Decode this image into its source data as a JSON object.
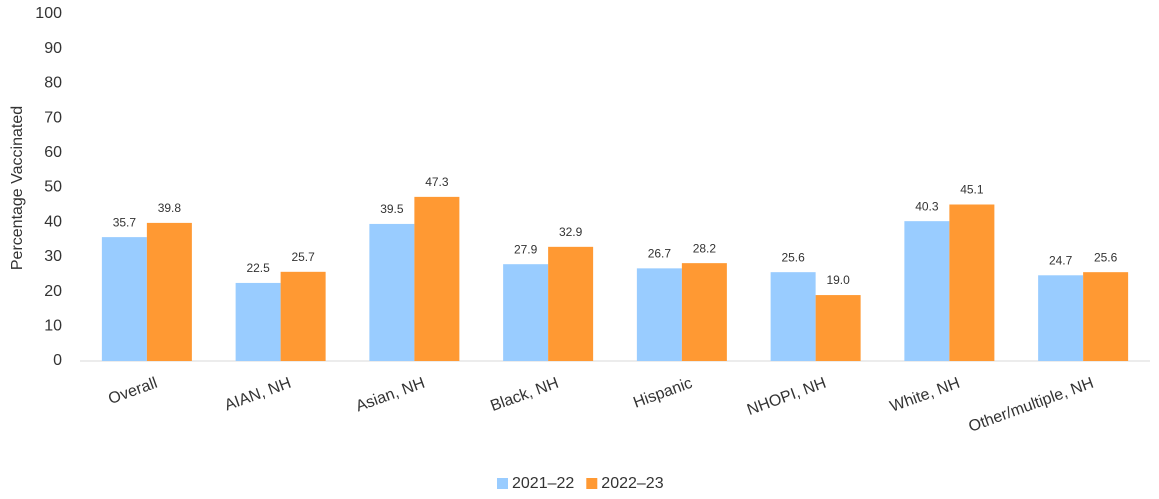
{
  "chart_data": {
    "type": "bar",
    "y_label": "Percentage Vaccinated",
    "categories": [
      "Overall",
      "AIAN, NH",
      "Asian, NH",
      "Black, NH",
      "Hispanic",
      "NHOPI, NH",
      "White, NH",
      "Other/multiple, NH"
    ],
    "series": [
      {
        "name": "2021–22",
        "color": "#99ccff",
        "values": [
          35.7,
          22.5,
          39.5,
          27.9,
          26.7,
          25.6,
          40.3,
          24.7
        ],
        "value_labels": [
          "35.7",
          "22.5",
          "39.5",
          "27.9",
          "26.7",
          "25.6",
          "40.3",
          "24.7"
        ]
      },
      {
        "name": "2022–23",
        "color": "#ff9933",
        "values": [
          39.8,
          25.7,
          47.3,
          32.9,
          28.2,
          19.0,
          45.1,
          25.6
        ],
        "value_labels": [
          "39.8",
          "25.7",
          "47.3",
          "32.9",
          "28.2",
          "19.0",
          "45.1",
          "25.6"
        ]
      }
    ],
    "ylim": [
      0,
      100
    ],
    "yticks": [
      0,
      10,
      20,
      30,
      40,
      50,
      60,
      70,
      80,
      90,
      100
    ],
    "grid": false,
    "legend": "bottom"
  }
}
